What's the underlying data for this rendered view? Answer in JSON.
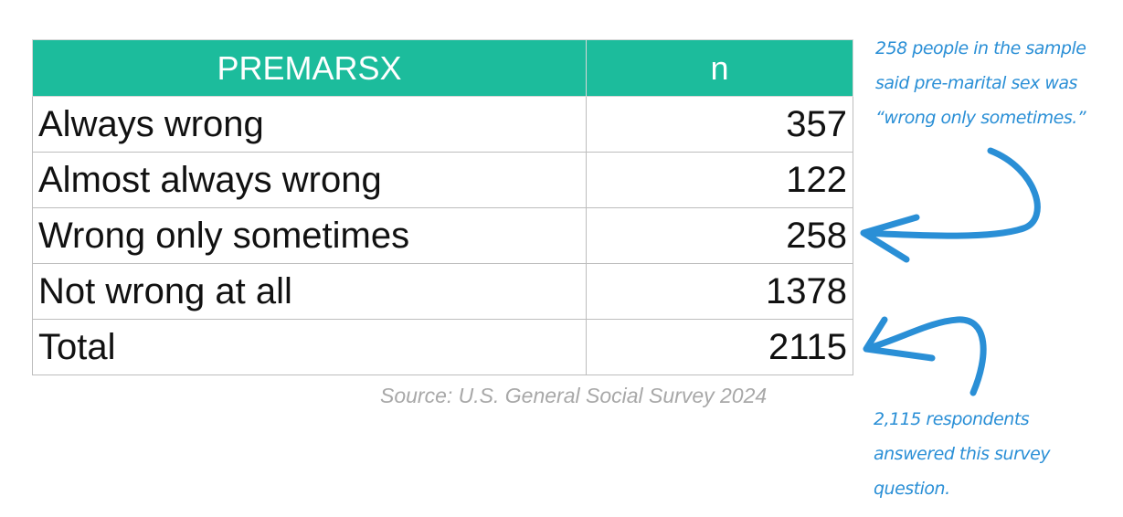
{
  "table": {
    "headers": [
      "PREMARSX",
      "n"
    ],
    "rows": [
      {
        "label": "Always wrong",
        "n": "357"
      },
      {
        "label": "Almost always wrong",
        "n": "122"
      },
      {
        "label": "Wrong only sometimes",
        "n": "258"
      },
      {
        "label": "Not wrong at all",
        "n": "1378"
      },
      {
        "label": "Total",
        "n": "2115"
      }
    ],
    "header_color": "#1cbc9c"
  },
  "source": "Source: U.S. General Social Survey 2024",
  "annotations": {
    "top": {
      "lines": [
        "258 people in the sample",
        "said pre-marital sex was",
        "“wrong only sometimes.”"
      ]
    },
    "bottom": {
      "lines": [
        "2,115 respondents",
        "answered this survey",
        "question."
      ]
    },
    "color": "#2a8fd6"
  }
}
